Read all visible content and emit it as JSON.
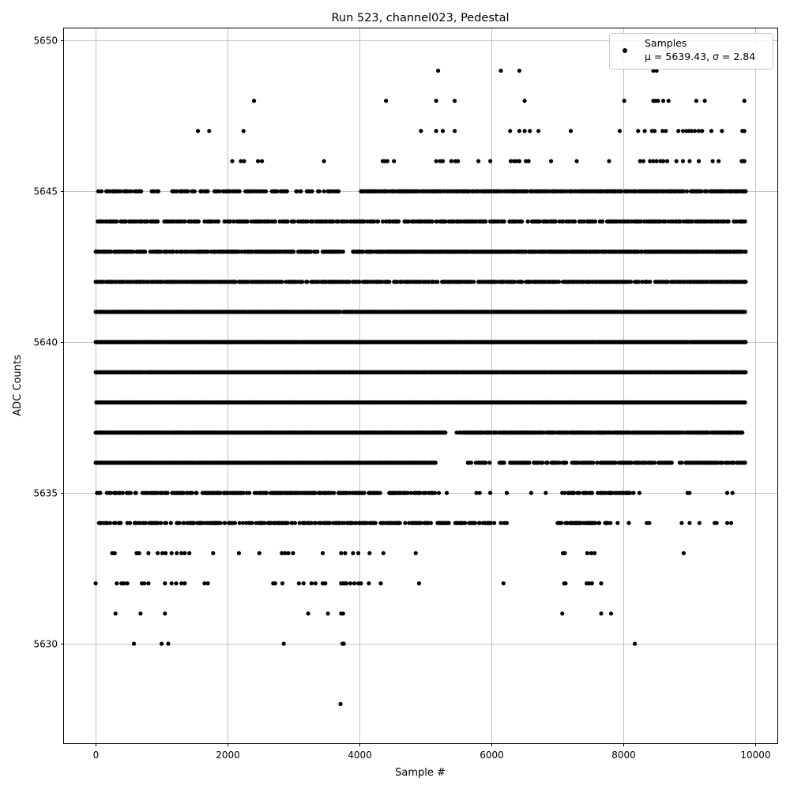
{
  "chart_data": {
    "type": "scatter",
    "title": "Run 523, channel023, Pedestal",
    "xlabel": "Sample #",
    "ylabel": "ADC Counts",
    "xlim": [
      -480,
      10330
    ],
    "ylim": [
      5626.7,
      5650.4
    ],
    "xticks": [
      0,
      2000,
      4000,
      6000,
      8000,
      10000
    ],
    "yticks": [
      5630,
      5635,
      5640,
      5645,
      5650
    ],
    "grid": true,
    "marker_color": "#000000",
    "legend": {
      "placement": "top-right",
      "series_label": "Samples",
      "stats_label": "μ = 5639.43, σ = 2.84"
    },
    "series": [
      {
        "name": "Samples",
        "bands": [
          {
            "y": 5628,
            "x": [
              3710
            ]
          },
          {
            "y": 5630,
            "x": [
              580,
              1000,
              1100,
              2850,
              3740,
              3760,
              8170
            ]
          },
          {
            "y": 5631,
            "x": [
              300,
              680,
              1050,
              3220,
              3520,
              3720,
              3750,
              7070,
              7660,
              7810
            ]
          },
          {
            "y": 5632,
            "x": [
              0,
              320,
              390,
              430,
              480,
              700,
              740,
              800,
              1050,
              1150,
              1220,
              1300,
              1350,
              1650,
              1700,
              2690,
              2720,
              2830,
              3080,
              3150,
              3270,
              3330,
              3440,
              3480,
              3720,
              3740,
              3760,
              3780,
              3800,
              3860,
              3920,
              3980,
              4020,
              4140,
              4320,
              4900,
              6180,
              7100,
              7120,
              7440,
              7480,
              7520,
              7660
            ]
          },
          {
            "y": 5633,
            "x": [
              250,
              290,
              620,
              660,
              800,
              940,
              1010,
              1060,
              1150,
              1230,
              1300,
              1350,
              1420,
              1780,
              2170,
              2480,
              2820,
              2870,
              2920,
              2990,
              3440,
              3720,
              3780,
              3900,
              3980,
              4150,
              4360,
              4850,
              7080,
              7110,
              7450,
              7510,
              7560,
              8910
            ]
          },
          {
            "start": 0,
            "end": 6000,
            "density": 0.42,
            "y": 5634
          },
          {
            "start": 7000,
            "end": 7800,
            "density": 0.5,
            "y": 5634
          },
          {
            "y": 5634,
            "x": [
              5350,
              5470,
              5950,
              6040,
              6140,
              6190,
              6230,
              7910,
              8080,
              8350,
              8390,
              8880,
              9000,
              9150,
              9380,
              9410,
              9570,
              9630
            ]
          },
          {
            "start": 0,
            "end": 5200,
            "density": 0.42,
            "y": 5635
          },
          {
            "start": 7050,
            "end": 8100,
            "density": 0.4,
            "y": 5635
          },
          {
            "y": 5635,
            "x": [
              5320,
              5770,
              5820,
              5980,
              6230,
              6600,
              6820,
              8150,
              8240,
              8970,
              9000,
              9570,
              9650
            ]
          },
          {
            "start": 0,
            "end": 5150,
            "density": 0.9,
            "y": 5636
          },
          {
            "start": 5600,
            "end": 9840,
            "density": 0.45,
            "y": 5636
          },
          {
            "start": 0,
            "end": 5300,
            "density": 0.95,
            "y": 5637
          },
          {
            "start": 5450,
            "end": 9800,
            "density": 0.8,
            "y": 5637
          },
          {
            "start": 0,
            "end": 9850,
            "density": 0.95,
            "y": 5638
          },
          {
            "start": 0,
            "end": 9850,
            "density": 0.95,
            "y": 5639
          },
          {
            "start": 0,
            "end": 9850,
            "density": 0.95,
            "y": 5640
          },
          {
            "start": 0,
            "end": 3700,
            "density": 0.9,
            "y": 5641
          },
          {
            "start": 3750,
            "end": 9850,
            "density": 0.95,
            "y": 5641
          },
          {
            "start": 0,
            "end": 9850,
            "density": 0.55,
            "y": 5642
          },
          {
            "start": 0,
            "end": 3750,
            "density": 0.55,
            "y": 5643
          },
          {
            "start": 3900,
            "end": 9850,
            "density": 0.8,
            "y": 5643
          },
          {
            "start": 0,
            "end": 9850,
            "density": 0.45,
            "y": 5644
          },
          {
            "start": 0,
            "end": 3700,
            "density": 0.3,
            "y": 5645
          },
          {
            "start": 4000,
            "end": 9850,
            "density": 0.65,
            "y": 5645
          },
          {
            "y": 5646,
            "x": [
              2070,
              2200,
              2250,
              2460,
              2520,
              3460,
              4350,
              4380,
              4420,
              4520,
              5160,
              5220,
              5260,
              5390,
              5450,
              5490,
              5800,
              5980,
              6290,
              6340,
              6380,
              6420,
              6520,
              6560,
              6900,
              7290,
              7780,
              8250,
              8300,
              8400,
              8450,
              8500,
              8560,
              8600,
              8660,
              8800,
              8900,
              9000,
              9140,
              9350,
              9440,
              9790,
              9810,
              9830
            ]
          },
          {
            "y": 5647,
            "x": [
              1550,
              1720,
              2240,
              4930,
              5160,
              5260,
              5440,
              6280,
              6420,
              6500,
              6580,
              6710,
              7200,
              7940,
              8220,
              8320,
              8430,
              8470,
              8590,
              8640,
              8830,
              8900,
              8950,
              8990,
              9030,
              9080,
              9140,
              9190,
              9330,
              9490,
              9800,
              9830
            ]
          },
          {
            "y": 5648,
            "x": [
              2400,
              4400,
              5160,
              5440,
              6500,
              8010,
              8450,
              8480,
              8520,
              8600,
              8680,
              9100,
              9230,
              9830
            ]
          },
          {
            "y": 5649,
            "x": [
              5190,
              6140,
              6420,
              8450,
              8500
            ]
          }
        ]
      }
    ]
  }
}
